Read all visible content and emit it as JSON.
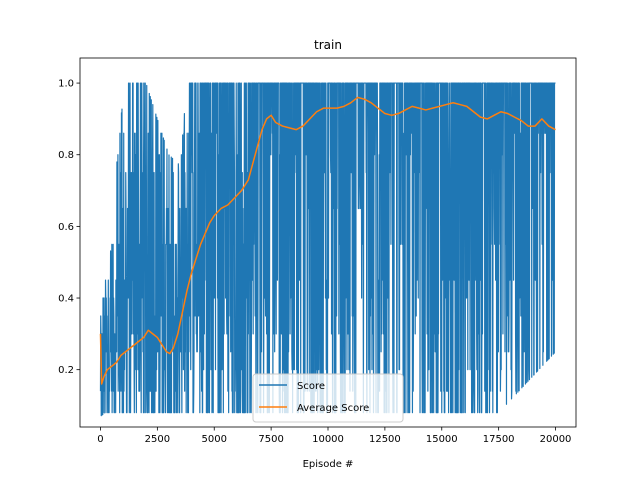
{
  "chart_data": {
    "type": "line",
    "title": "train",
    "xlabel": "Episode #",
    "ylabel": "",
    "xlim": [
      -900,
      20900
    ],
    "ylim": [
      0.04,
      1.07
    ],
    "x_ticks": [
      0,
      2500,
      5000,
      7500,
      10000,
      12500,
      15000,
      17500,
      20000
    ],
    "y_ticks": [
      0.2,
      0.4,
      0.6,
      0.8,
      1.0
    ],
    "x_tick_labels": [
      "0",
      "2500",
      "5000",
      "7500",
      "10000",
      "12500",
      "15000",
      "17500",
      "20000"
    ],
    "y_tick_labels": [
      "0.2",
      "0.4",
      "0.6",
      "0.8",
      "1.0"
    ],
    "grid": false,
    "legend_position": "lower-center",
    "series": [
      {
        "name": "Score",
        "color": "#1f77b4",
        "x_range": [
          0,
          20000
        ],
        "envelope": [
          {
            "x": 0,
            "low": 0.07,
            "high": 0.35
          },
          {
            "x": 200,
            "low": 0.08,
            "high": 0.45
          },
          {
            "x": 500,
            "low": 0.08,
            "high": 0.55
          },
          {
            "x": 800,
            "low": 0.08,
            "high": 0.86
          },
          {
            "x": 1100,
            "low": 0.08,
            "high": 1.0
          },
          {
            "x": 2000,
            "low": 0.08,
            "high": 1.0
          },
          {
            "x": 3000,
            "low": 0.08,
            "high": 0.8
          },
          {
            "x": 3500,
            "low": 0.08,
            "high": 0.77
          },
          {
            "x": 3800,
            "low": 0.08,
            "high": 1.0
          },
          {
            "x": 4500,
            "low": 0.08,
            "high": 1.0
          },
          {
            "x": 6000,
            "low": 0.08,
            "high": 1.0
          },
          {
            "x": 7500,
            "low": 0.08,
            "high": 1.0
          },
          {
            "x": 10000,
            "low": 0.08,
            "high": 1.0
          },
          {
            "x": 12500,
            "low": 0.08,
            "high": 1.0
          },
          {
            "x": 15000,
            "low": 0.08,
            "high": 1.0
          },
          {
            "x": 17500,
            "low": 0.08,
            "high": 1.0
          },
          {
            "x": 20000,
            "low": 0.25,
            "high": 1.0
          }
        ]
      },
      {
        "name": "Average Score",
        "color": "#ff7f0e",
        "x": [
          0,
          50,
          150,
          300,
          500,
          700,
          900,
          1100,
          1300,
          1500,
          1700,
          1900,
          2100,
          2300,
          2500,
          2700,
          2900,
          3050,
          3200,
          3400,
          3600,
          3800,
          4000,
          4200,
          4400,
          4600,
          4800,
          5000,
          5300,
          5600,
          5900,
          6200,
          6500,
          6800,
          7100,
          7300,
          7500,
          7700,
          8000,
          8300,
          8600,
          8900,
          9200,
          9500,
          9800,
          10100,
          10400,
          10700,
          11000,
          11300,
          11600,
          11900,
          12200,
          12500,
          12800,
          13100,
          13400,
          13700,
          14000,
          14300,
          14600,
          14900,
          15200,
          15500,
          15800,
          16100,
          16400,
          16700,
          17000,
          17300,
          17600,
          17900,
          18200,
          18500,
          18800,
          19100,
          19400,
          19700,
          20000
        ],
        "values": [
          0.3,
          0.16,
          0.18,
          0.2,
          0.21,
          0.22,
          0.24,
          0.25,
          0.26,
          0.27,
          0.28,
          0.29,
          0.31,
          0.3,
          0.29,
          0.27,
          0.25,
          0.245,
          0.26,
          0.3,
          0.36,
          0.42,
          0.47,
          0.51,
          0.55,
          0.58,
          0.61,
          0.63,
          0.65,
          0.66,
          0.68,
          0.7,
          0.73,
          0.8,
          0.87,
          0.9,
          0.91,
          0.89,
          0.88,
          0.875,
          0.87,
          0.88,
          0.9,
          0.92,
          0.93,
          0.93,
          0.93,
          0.935,
          0.945,
          0.96,
          0.955,
          0.945,
          0.93,
          0.915,
          0.91,
          0.915,
          0.925,
          0.935,
          0.93,
          0.925,
          0.93,
          0.935,
          0.94,
          0.945,
          0.94,
          0.935,
          0.92,
          0.905,
          0.9,
          0.91,
          0.92,
          0.915,
          0.905,
          0.895,
          0.88,
          0.88,
          0.9,
          0.88,
          0.87
        ]
      }
    ]
  }
}
